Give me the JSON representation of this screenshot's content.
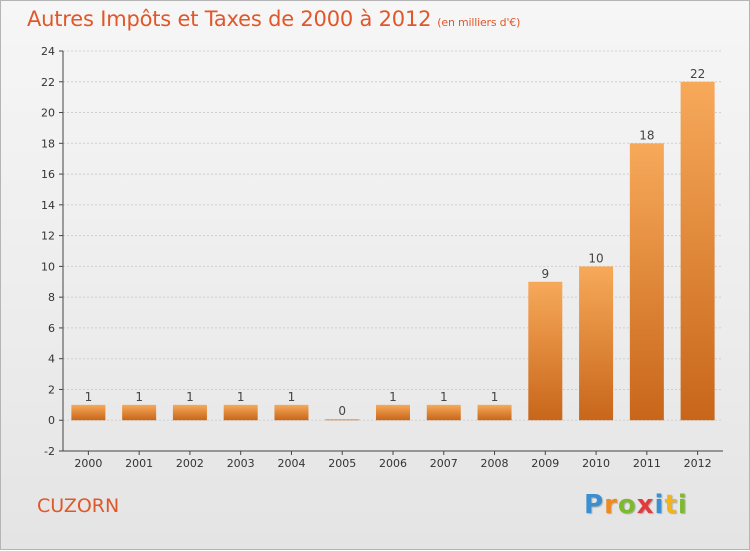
{
  "title": "Autres Impôts et Taxes de 2000 à 2012",
  "subtitle": "(en milliers d'€)",
  "commune": "CUZORN",
  "logo_text": "Proxiti",
  "colors": {
    "title": "#e0572a",
    "bar_light": "#f7a95a",
    "bar_dark": "#c8661a",
    "axis": "#444444",
    "grid": "#cccccc"
  },
  "chart_data": {
    "type": "bar",
    "categories": [
      "2000",
      "2001",
      "2002",
      "2003",
      "2004",
      "2005",
      "2006",
      "2007",
      "2008",
      "2009",
      "2010",
      "2011",
      "2012"
    ],
    "values": [
      1,
      1,
      1,
      1,
      1,
      0,
      1,
      1,
      1,
      9,
      10,
      18,
      22
    ],
    "data_labels": [
      "1",
      "1",
      "1",
      "1",
      "1",
      "0",
      "1",
      "1",
      "1",
      "9",
      "10",
      "18",
      "22"
    ],
    "y_ticks": [
      "-2",
      "0",
      "2",
      "4",
      "6",
      "8",
      "10",
      "12",
      "14",
      "16",
      "18",
      "20",
      "22",
      "24"
    ],
    "ylim": [
      -2,
      24
    ],
    "grid": true,
    "legend": "none"
  }
}
